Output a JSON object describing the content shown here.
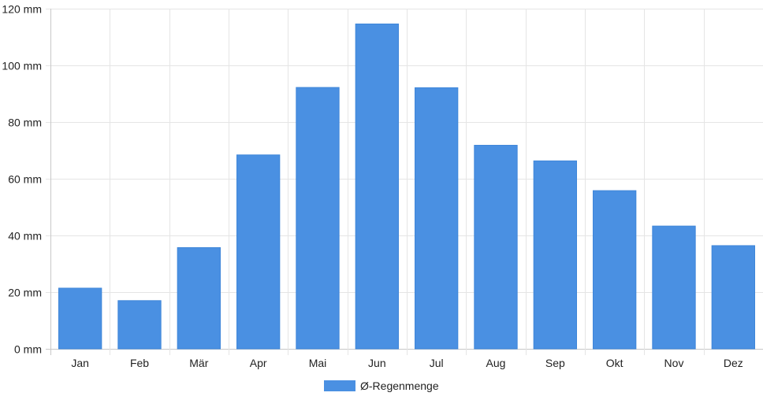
{
  "chart_data": {
    "type": "bar",
    "categories": [
      "Jan",
      "Feb",
      "Mär",
      "Apr",
      "Mai",
      "Jun",
      "Jul",
      "Aug",
      "Sep",
      "Okt",
      "Nov",
      "Dez"
    ],
    "series": [
      {
        "name": "Ø-Regenmenge",
        "values": [
          21.4,
          17.0,
          35.7,
          68.4,
          92.2,
          114.6,
          92.1,
          71.8,
          66.3,
          55.8,
          43.3,
          36.4
        ],
        "color": "#4a90e2"
      }
    ],
    "y_ticks": [
      "0 mm",
      "20 mm",
      "40 mm",
      "60 mm",
      "80 mm",
      "100 mm",
      "120 mm"
    ],
    "ylim": [
      0,
      120
    ],
    "y_unit": "mm",
    "grid": true,
    "legend_position": "bottom"
  }
}
